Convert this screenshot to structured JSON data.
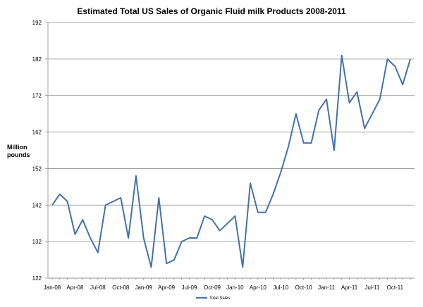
{
  "chart_data": {
    "type": "line",
    "title": "Estimated Total US Sales of Organic Fluid milk Products 2008-2011",
    "ylabel": "Million pounds",
    "xlabel": "",
    "ylim": [
      122,
      192
    ],
    "yticks": [
      122,
      132,
      142,
      152,
      162,
      172,
      182,
      192
    ],
    "grid": "horizontal",
    "legend_position": "bottom-center",
    "series_color": "#4472A8",
    "x_tick_labels": [
      "Jan-08",
      "Apr-08",
      "Jul-08",
      "Oct-08",
      "Jan-09",
      "Apr-09",
      "Jul-09",
      "Oct-09",
      "Jan-10",
      "Apr-10",
      "Jul-10",
      "Oct-10",
      "Jan-11",
      "Apr-11",
      "Jul-11",
      "Oct-11"
    ],
    "x": [
      "Jan-08",
      "Feb-08",
      "Mar-08",
      "Apr-08",
      "May-08",
      "Jun-08",
      "Jul-08",
      "Aug-08",
      "Sep-08",
      "Oct-08",
      "Nov-08",
      "Dec-08",
      "Jan-09",
      "Feb-09",
      "Mar-09",
      "Apr-09",
      "May-09",
      "Jun-09",
      "Jul-09",
      "Aug-09",
      "Sep-09",
      "Oct-09",
      "Nov-09",
      "Dec-09",
      "Jan-10",
      "Feb-10",
      "Mar-10",
      "Apr-10",
      "May-10",
      "Jun-10",
      "Jul-10",
      "Aug-10",
      "Sep-10",
      "Oct-10",
      "Nov-10",
      "Dec-10",
      "Jan-11",
      "Feb-11",
      "Mar-11",
      "Apr-11",
      "May-11",
      "Jun-11",
      "Jul-11",
      "Aug-11",
      "Sep-11",
      "Oct-11",
      "Nov-11",
      "Dec-11"
    ],
    "series": [
      {
        "name": "Total Sales",
        "values": [
          142,
          145,
          143,
          134,
          138,
          133,
          129,
          142,
          143,
          144,
          133,
          150,
          133,
          125,
          144,
          126,
          127,
          132,
          133,
          133,
          139,
          138,
          135,
          137,
          139,
          125,
          148,
          140,
          140,
          145,
          151,
          158,
          167,
          159,
          159,
          168,
          171,
          157,
          183,
          170,
          173,
          163,
          167,
          171,
          182,
          180,
          175,
          182
        ]
      }
    ]
  }
}
